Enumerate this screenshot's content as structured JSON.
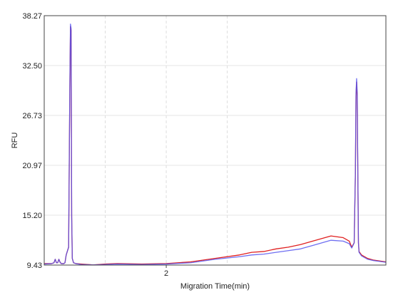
{
  "chart_data": {
    "type": "line",
    "title": "",
    "xlabel": "Migration Time(min)",
    "ylabel": "RFU",
    "xlim": [
      1.0,
      3.8
    ],
    "ylim": [
      9.43,
      38.27
    ],
    "y_ticks": [
      9.43,
      15.2,
      20.97,
      26.73,
      32.5,
      38.27
    ],
    "y_tick_labels": [
      "9.43",
      "15.20",
      "20.97",
      "26.73",
      "32.50",
      "38.27"
    ],
    "x_ticks": [
      2
    ],
    "x_tick_labels": [
      "2"
    ],
    "x_minor_gridlines": [
      1.5,
      2.0,
      2.5
    ],
    "grid": true,
    "series": [
      {
        "color": "#e02020",
        "x": [
          1.0,
          1.06,
          1.08,
          1.09,
          1.1,
          1.11,
          1.12,
          1.13,
          1.14,
          1.15,
          1.16,
          1.17,
          1.18,
          1.2,
          1.21,
          1.215,
          1.22,
          1.225,
          1.23,
          1.24,
          1.26,
          1.3,
          1.4,
          1.5,
          1.6,
          1.8,
          2.0,
          2.2,
          2.4,
          2.6,
          2.7,
          2.8,
          2.9,
          3.0,
          3.1,
          3.2,
          3.35,
          3.45,
          3.5,
          3.52,
          3.54,
          3.55,
          3.555,
          3.56,
          3.565,
          3.57,
          3.575,
          3.58,
          3.6,
          3.65,
          3.7,
          3.75,
          3.8
        ],
        "y": [
          9.6,
          9.6,
          9.7,
          10.1,
          9.7,
          9.7,
          10.1,
          9.75,
          9.6,
          9.6,
          9.6,
          9.7,
          10.6,
          11.5,
          30.0,
          37.0,
          36.6,
          15.0,
          10.2,
          9.7,
          9.6,
          9.55,
          9.45,
          9.55,
          9.6,
          9.55,
          9.6,
          9.8,
          10.2,
          10.6,
          10.9,
          11.0,
          11.3,
          11.5,
          11.8,
          12.2,
          12.8,
          12.6,
          12.2,
          11.5,
          12.0,
          20.0,
          29.0,
          30.6,
          29.0,
          20.0,
          12.0,
          11.0,
          10.6,
          10.2,
          10.0,
          9.9,
          9.8
        ]
      },
      {
        "color": "#5555ee",
        "x": [
          1.0,
          1.06,
          1.08,
          1.09,
          1.1,
          1.11,
          1.12,
          1.13,
          1.14,
          1.15,
          1.16,
          1.17,
          1.18,
          1.2,
          1.21,
          1.215,
          1.22,
          1.225,
          1.23,
          1.24,
          1.26,
          1.3,
          1.4,
          1.5,
          1.6,
          1.8,
          2.0,
          2.2,
          2.4,
          2.6,
          2.7,
          2.8,
          2.9,
          3.0,
          3.1,
          3.2,
          3.35,
          3.45,
          3.5,
          3.52,
          3.54,
          3.55,
          3.555,
          3.56,
          3.565,
          3.57,
          3.575,
          3.58,
          3.6,
          3.65,
          3.7,
          3.75,
          3.8
        ],
        "y": [
          9.55,
          9.6,
          9.7,
          10.1,
          9.7,
          9.7,
          10.1,
          9.75,
          9.6,
          9.6,
          9.6,
          9.7,
          10.6,
          11.5,
          30.5,
          37.3,
          36.8,
          15.2,
          10.2,
          9.7,
          9.6,
          9.5,
          9.45,
          9.5,
          9.55,
          9.5,
          9.55,
          9.7,
          10.1,
          10.4,
          10.6,
          10.7,
          10.9,
          11.1,
          11.3,
          11.7,
          12.3,
          12.2,
          11.9,
          11.4,
          12.0,
          20.2,
          29.3,
          31.0,
          29.3,
          20.2,
          12.0,
          10.9,
          10.5,
          10.1,
          9.95,
          9.85,
          9.75
        ]
      }
    ]
  }
}
